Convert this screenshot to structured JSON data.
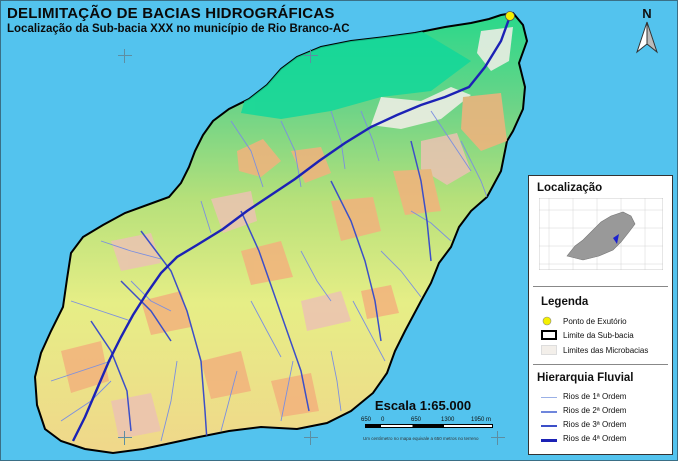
{
  "header": {
    "title": "DELIMITAÇÃO DE BACIAS HIDROGRÁFICAS",
    "subtitle": "Localização da Sub-bacia XXX no município de Rio Branco-AC"
  },
  "north_arrow": {
    "label": "N"
  },
  "locator": {
    "title": "Localização"
  },
  "legend": {
    "title": "Legenda",
    "items": [
      {
        "label": "Ponto de Exutório",
        "icon": "yellow-circle-icon",
        "color": "#f4f000"
      },
      {
        "label": "Limite da Sub-bacia",
        "icon": "black-outline-box-icon",
        "color": "#000000"
      },
      {
        "label": "Limites das Microbacias",
        "icon": "light-box-icon",
        "color": "#f3efea"
      }
    ]
  },
  "river_hierarchy": {
    "title": "Hierarquia Fluvial",
    "items": [
      {
        "label": "Rios de 1ª Ordem",
        "color": "#9ab0e6"
      },
      {
        "label": "Rios de 2ª Ordem",
        "color": "#6f86dc"
      },
      {
        "label": "Rios de 3ª Ordem",
        "color": "#3c4fc8"
      },
      {
        "label": "Rios de 4ª Ordem",
        "color": "#1c22b5"
      }
    ]
  },
  "scale": {
    "title": "Escala 1:65.000",
    "ticks": [
      "650",
      "0",
      "650",
      "1300",
      "1950 m"
    ],
    "note": "Um centímetro no mapa equivale a 650 metros no terreno"
  },
  "colors": {
    "water": "#53c3ee",
    "basin_green_dark": "#2ddc88",
    "basin_green": "#63d98b",
    "basin_lightgreen": "#a9de79",
    "basin_yellow": "#e6ee86",
    "basin_orange": "#f2b27d",
    "basin_pink": "#ecc2b3"
  }
}
